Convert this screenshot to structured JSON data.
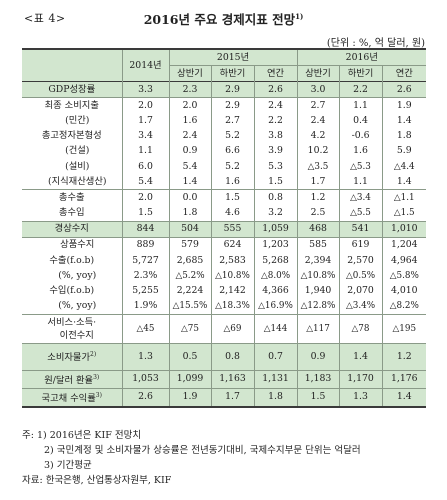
{
  "header": {
    "table_label": "<표 4>",
    "title": "2016년 주요 경제지표 전망",
    "title_sup": "1)",
    "unit": "(단위 : %, 억 달러, 원)"
  },
  "table": {
    "col_2014": "2014년",
    "group_2015": "2015년",
    "group_2016": "2016년",
    "sub": [
      "상반기",
      "하반기",
      "연간"
    ],
    "rows": [
      {
        "label": "GDP성장률",
        "v": [
          "3.3",
          "2.3",
          "2.9",
          "2.6",
          "3.0",
          "2.2",
          "2.6"
        ]
      },
      {
        "label": "최종 소비지출",
        "v": [
          "2.0",
          "2.0",
          "2.9",
          "2.4",
          "2.7",
          "1.1",
          "1.9"
        ]
      },
      {
        "label": "(민간)",
        "v": [
          "1.7",
          "1.6",
          "2.7",
          "2.2",
          "2.4",
          "0.4",
          "1.4"
        ]
      },
      {
        "label": "총고정자본형성",
        "v": [
          "3.4",
          "2.4",
          "5.2",
          "3.8",
          "4.2",
          "-0.6",
          "1.8"
        ]
      },
      {
        "label": "(건설)",
        "v": [
          "1.1",
          "0.9",
          "6.6",
          "3.9",
          "10.2",
          "1.6",
          "5.9"
        ]
      },
      {
        "label": "(설비)",
        "v": [
          "6.0",
          "5.4",
          "5.2",
          "5.3",
          "△3.5",
          "△5.3",
          "△4.4"
        ]
      },
      {
        "label": "(지식재산생산)",
        "v": [
          "5.4",
          "1.4",
          "1.6",
          "1.5",
          "1.7",
          "1.1",
          "1.4"
        ]
      },
      {
        "label": "총수출",
        "v": [
          "2.0",
          "0.0",
          "1.5",
          "0.8",
          "1.2",
          "△3.4",
          "△1.1"
        ]
      },
      {
        "label": "총수입",
        "v": [
          "1.5",
          "1.8",
          "4.6",
          "3.2",
          "2.5",
          "△5.5",
          "△1.5"
        ]
      },
      {
        "label": "경상수지",
        "v": [
          "844",
          "504",
          "555",
          "1,059",
          "468",
          "541",
          "1,010"
        ]
      },
      {
        "label": "상품수지",
        "v": [
          "889",
          "579",
          "624",
          "1,203",
          "585",
          "619",
          "1,204"
        ]
      },
      {
        "label": "수출(f.o.b)",
        "v": [
          "5,727",
          "2,685",
          "2,583",
          "5,268",
          "2,394",
          "2,570",
          "4,964"
        ]
      },
      {
        "label": "(%, yoy)",
        "v": [
          "2.3%",
          "△5.2%",
          "△10.8%",
          "△8.0%",
          "△10.8%",
          "△0.5%",
          "△5.8%"
        ]
      },
      {
        "label": "수입(f.o.b)",
        "v": [
          "5,255",
          "2,224",
          "2,142",
          "4,366",
          "1,940",
          "2,070",
          "4,010"
        ]
      },
      {
        "label": "(%, yoy)",
        "v": [
          "1.9%",
          "△15.5%",
          "△18.3%",
          "△16.9%",
          "△12.8%",
          "△3.4%",
          "△8.2%"
        ]
      },
      {
        "label": "서비스·소득·",
        "label2": "이전수지",
        "v": [
          "△45",
          "△75",
          "△69",
          "△144",
          "△117",
          "△78",
          "△195"
        ]
      },
      {
        "label": "소비자물가",
        "label_sup": "2)",
        "v": [
          "1.3",
          "0.5",
          "0.8",
          "0.7",
          "0.9",
          "1.4",
          "1.2"
        ]
      },
      {
        "label": "원/달러 환율",
        "label_sup": "3)",
        "v": [
          "1,053",
          "1,099",
          "1,163",
          "1,131",
          "1,183",
          "1,170",
          "1,176"
        ]
      },
      {
        "label": "국고채 수익률",
        "label_sup": "3)",
        "v": [
          "2.6",
          "1.9",
          "1.7",
          "1.8",
          "1.5",
          "1.3",
          "1.4"
        ]
      }
    ]
  },
  "notes": [
    "주: 1) 2016년은 KIF 전망치",
    "2) 국민계정 및 소비자물가 상승률은 전년동기대비, 국제수지부문 단위는 억달러",
    "3) 기간평균",
    "자료: 한국은행, 산업통상자원부, KIF"
  ]
}
